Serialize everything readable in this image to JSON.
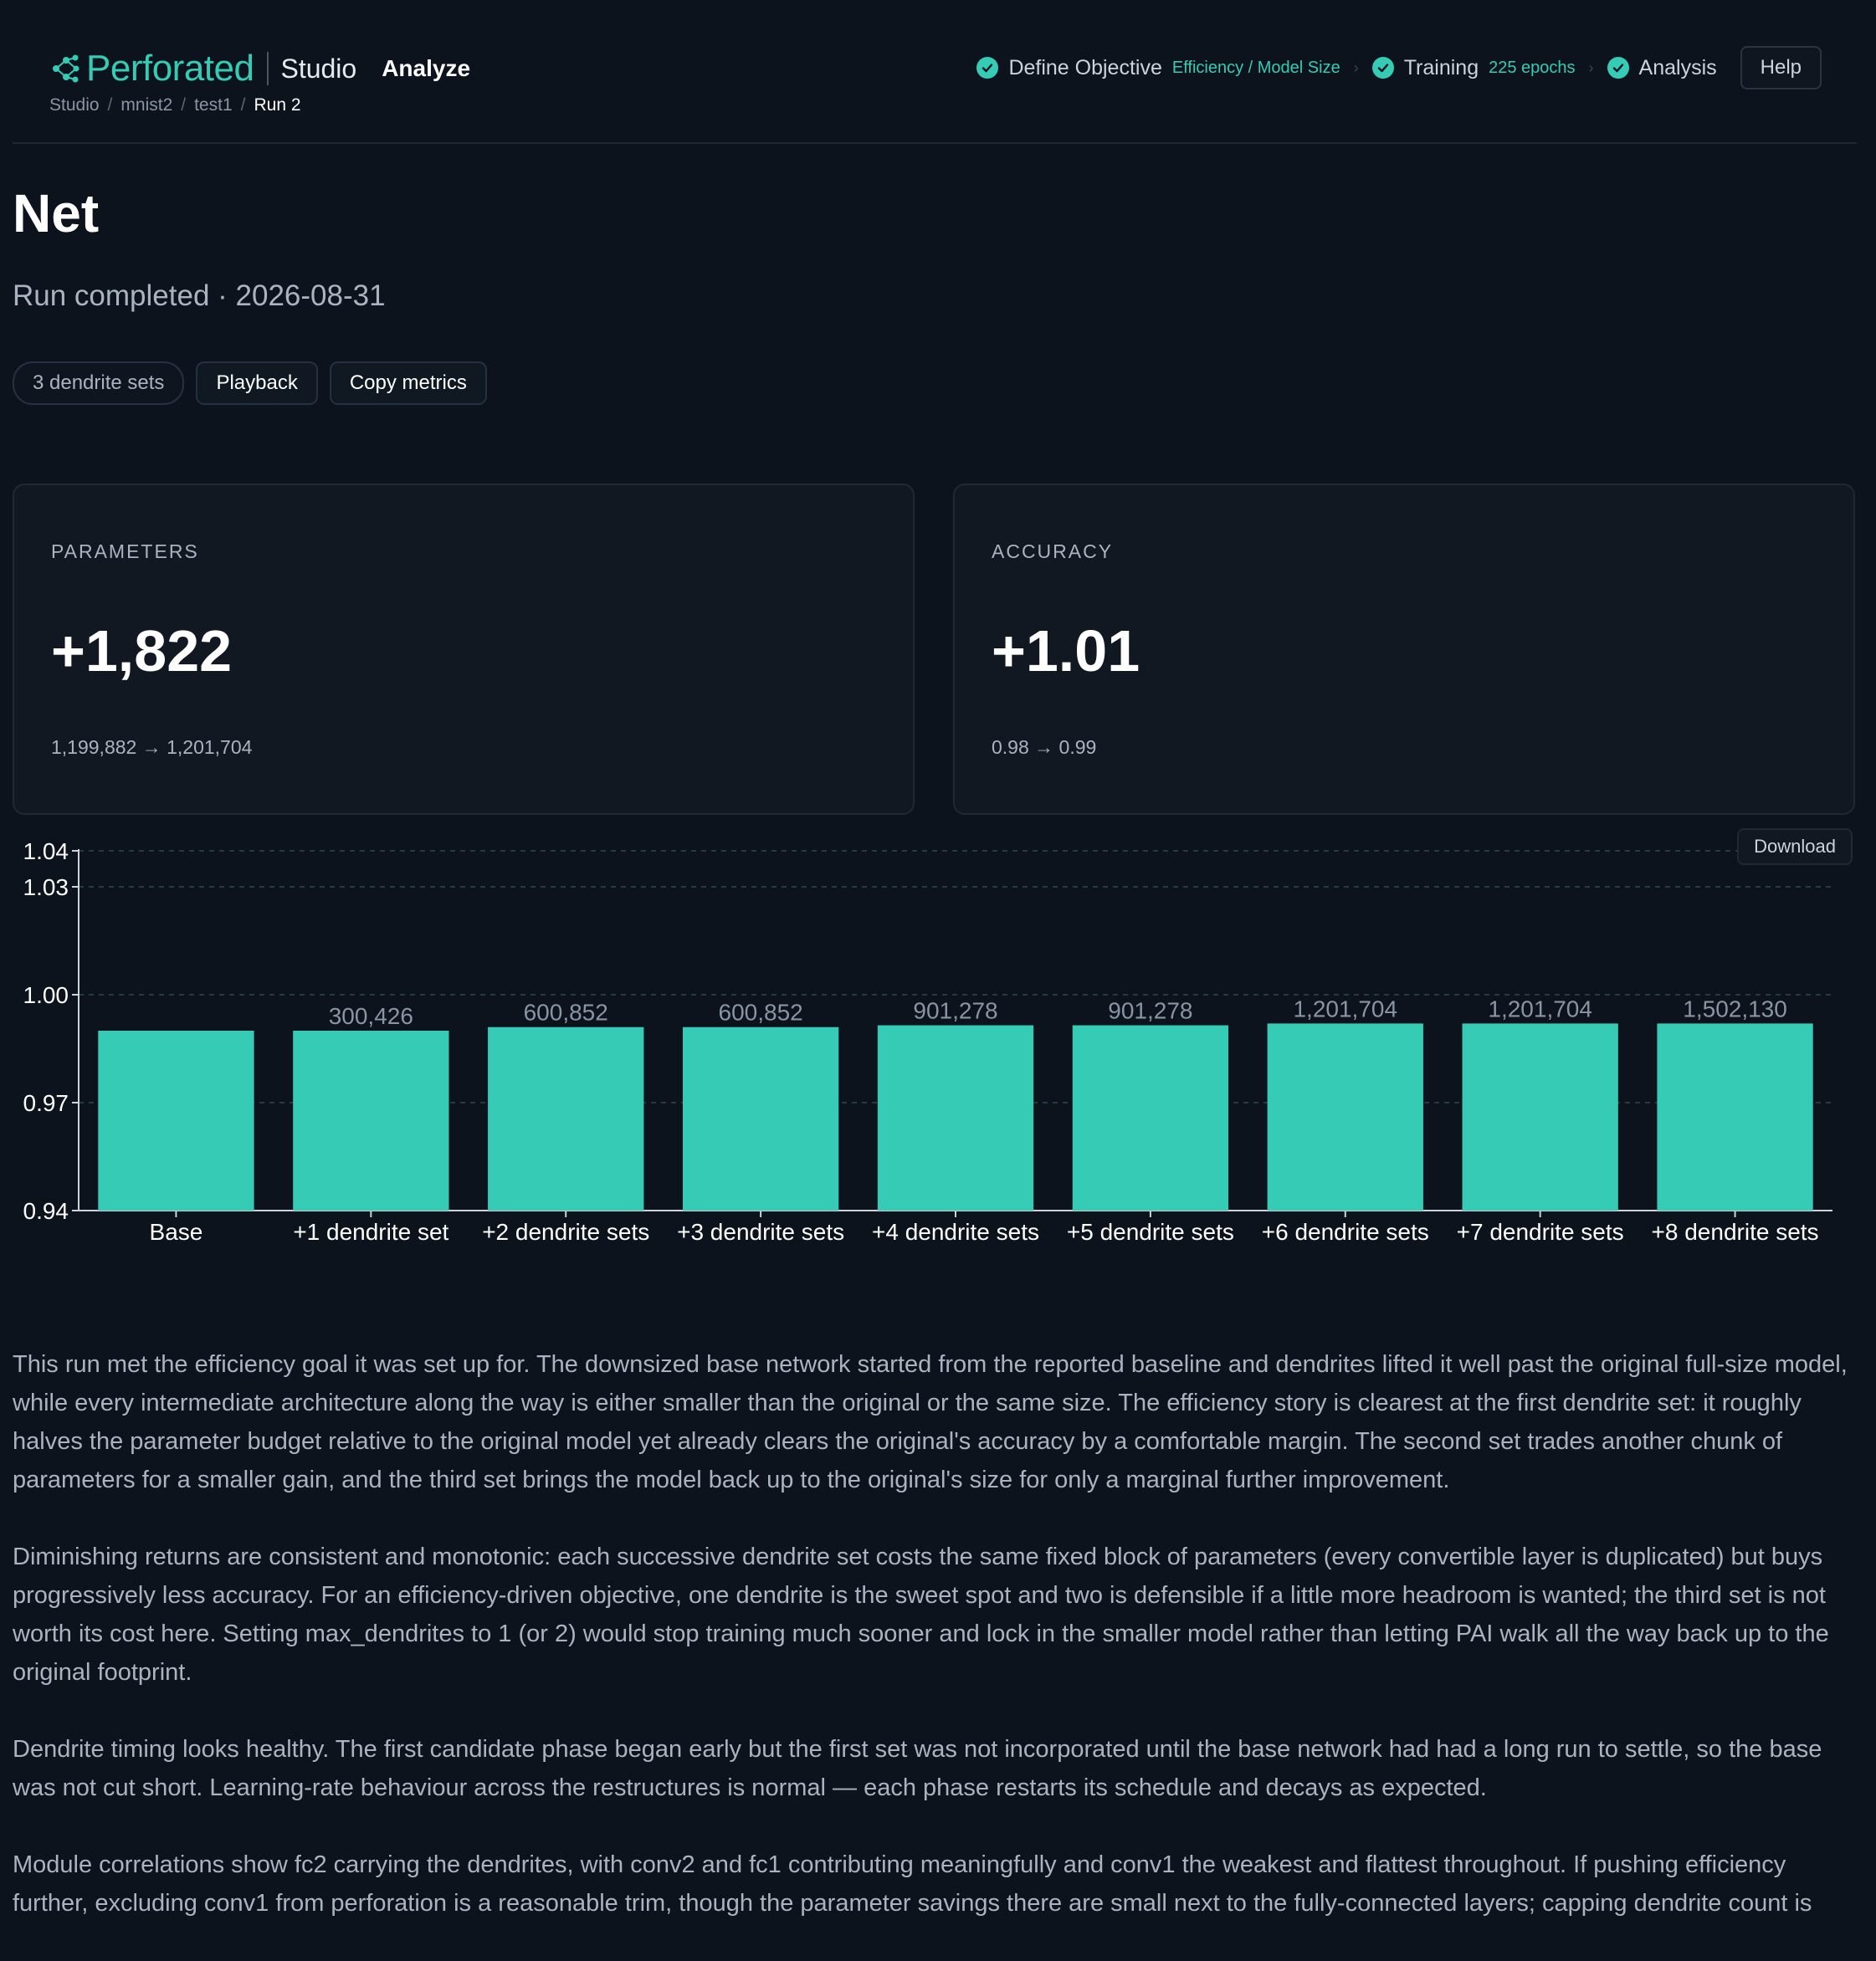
{
  "header": {
    "logo_text": "Perforated",
    "studio_text": "Studio",
    "nav_label": "Analyze",
    "breadcrumb": [
      "Studio",
      "mnist2",
      "test1",
      "Run 2"
    ],
    "steps": [
      {
        "label": "Define Objective",
        "meta": "Efficiency / Model Size"
      },
      {
        "label": "Training",
        "meta": "225 epochs"
      },
      {
        "label": "Analysis",
        "meta": ""
      }
    ],
    "help_label": "Help"
  },
  "page": {
    "title": "Net",
    "subtitle": "Run completed · 2026-08-31",
    "tag": "3 dendrite sets",
    "playback_label": "Playback",
    "copy_label": "Copy metrics"
  },
  "cards": {
    "parameters": {
      "label": "PARAMETERS",
      "value": "+1,822",
      "range": "1,199,882 → 1,201,704"
    },
    "accuracy": {
      "label": "ACCURACY",
      "value": "+1.01",
      "range": "0.98 → 0.99"
    }
  },
  "download_label": "Download",
  "colors": {
    "accent": "#35cbb5",
    "background": "#0d131c",
    "card": "#111822"
  },
  "chart_data": {
    "type": "bar",
    "categories": [
      "Base",
      "+1 dendrite set",
      "+2 dendrite sets",
      "+3 dendrite sets",
      "+4 dendrite sets",
      "+5 dendrite sets",
      "+6 dendrite sets",
      "+7 dendrite sets",
      "+8 dendrite sets"
    ],
    "values": [
      0.99,
      0.99,
      0.991,
      0.991,
      0.9915,
      0.9915,
      0.992,
      0.992,
      0.992
    ],
    "bar_labels": [
      "",
      "300,426",
      "600,852",
      "600,852",
      "901,278",
      "901,278",
      "1,201,704",
      "1,201,704",
      "1,502,130"
    ],
    "yticks": [
      0.94,
      0.97,
      1.0,
      1.03,
      1.04
    ],
    "ytick_labels": [
      "0.94",
      "0.97",
      "1.00",
      "1.03",
      "1.04"
    ],
    "ylim": [
      0.94,
      1.04
    ],
    "grid": true,
    "bar_color": "#35cbb5"
  },
  "analysis": [
    "This run met the efficiency goal it was set up for. The downsized base network started from the reported baseline and dendrites lifted it well past the original full-size model, while every intermediate architecture along the way is either smaller than the original or the same size. The efficiency story is clearest at the first dendrite set: it roughly halves the parameter budget relative to the original model yet already clears the original's accuracy by a comfortable margin. The second set trades another chunk of parameters for a smaller gain, and the third set brings the model back up to the original's size for only a marginal further improvement.",
    "Diminishing returns are consistent and monotonic: each successive dendrite set costs the same fixed block of parameters (every convertible layer is duplicated) but buys progressively less accuracy. For an efficiency-driven objective, one dendrite is the sweet spot and two is defensible if a little more headroom is wanted; the third set is not worth its cost here. Setting max_dendrites to 1 (or 2) would stop training much sooner and lock in the smaller model rather than letting PAI walk all the way back up to the original footprint.",
    "Dendrite timing looks healthy. The first candidate phase began early but the first set was not incorporated until the base network had had a long run to settle, so the base was not cut short. Learning-rate behaviour across the restructures is normal — each phase restarts its schedule and decays as expected.",
    "Module correlations show fc2 carrying the dendrites, with conv2 and fc1 contributing meaningfully and conv1 the weakest and flattest throughout. If pushing efficiency further, excluding conv1 from perforation is a reasonable trim, though the parameter savings there are small next to the fully-connected layers; capping dendrite count is"
  ]
}
